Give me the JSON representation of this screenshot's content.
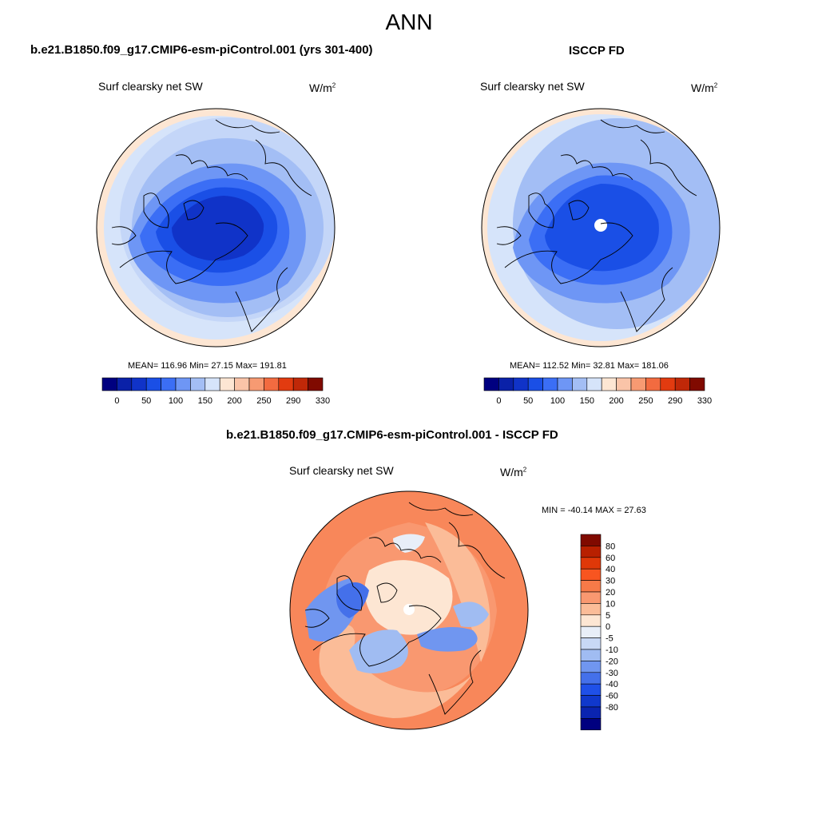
{
  "title": "ANN",
  "panels": [
    {
      "case_title": "b.e21.B1850.f09_g17.CMIP6-esm-piControl.001 (yrs 301-400)",
      "variable": "Surf clearsky net SW",
      "units": "W/m",
      "units_exp": "2",
      "stats": "MEAN= 116.96  Min=  27.15  Max= 191.81"
    },
    {
      "case_title": "ISCCP FD",
      "variable": "Surf clearsky net SW",
      "units": "W/m",
      "units_exp": "2",
      "stats": "MEAN= 112.52  Min=  32.81  Max= 181.06"
    },
    {
      "case_title": "b.e21.B1850.f09_g17.CMIP6-esm-piControl.001 - ISCCP FD",
      "variable": "Surf clearsky net SW",
      "units": "W/m",
      "units_exp": "2",
      "stats": "MIN = -40.14 MAX =  27.63"
    }
  ],
  "colorbar_top": {
    "colors": [
      "#000080",
      "#0a21a8",
      "#1033c8",
      "#1a4fe6",
      "#3b6ef5",
      "#6e96f5",
      "#a3bef5",
      "#d6e4fa",
      "#fde6d3",
      "#fac4a8",
      "#f79a72",
      "#f26b40",
      "#e23b10",
      "#c02808",
      "#800a00"
    ],
    "ticks": [
      "0",
      "50",
      "100",
      "150",
      "200",
      "250",
      "290",
      "330"
    ]
  },
  "colorbar_diff": {
    "colors": [
      "#800a00",
      "#b82000",
      "#e03808",
      "#f85520",
      "#f77a48",
      "#f99870",
      "#fbbc98",
      "#fde6d3",
      "#e8eef8",
      "#c8d8f5",
      "#a0bcf2",
      "#7096f0",
      "#4470ea",
      "#1f50e8",
      "#1038cc",
      "#0a24b0",
      "#000080"
    ],
    "ticks": [
      "80",
      "60",
      "40",
      "30",
      "20",
      "10",
      "5",
      "0",
      "-5",
      "-10",
      "-20",
      "-30",
      "-40",
      "-60",
      "-80"
    ]
  }
}
